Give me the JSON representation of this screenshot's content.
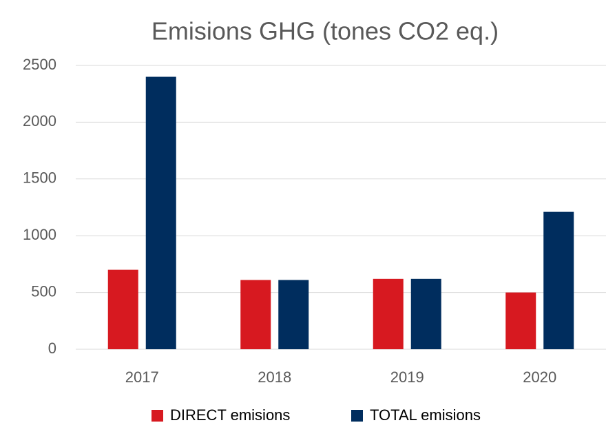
{
  "chart_data": {
    "type": "bar",
    "title": "Emisions GHG (tones CO2 eq.)",
    "categories": [
      "2017",
      "2018",
      "2019",
      "2020"
    ],
    "series": [
      {
        "name": "DIRECT emisions",
        "color": "#d71920",
        "values": [
          700,
          610,
          620,
          500
        ]
      },
      {
        "name": "TOTAL emisions",
        "color": "#002d5e",
        "values": [
          2400,
          610,
          620,
          1210
        ]
      }
    ],
    "ylim": [
      0,
      2500
    ],
    "yticks": [
      0,
      500,
      1000,
      1500,
      2000,
      2500
    ],
    "grid": true,
    "legend": "bottom"
  }
}
